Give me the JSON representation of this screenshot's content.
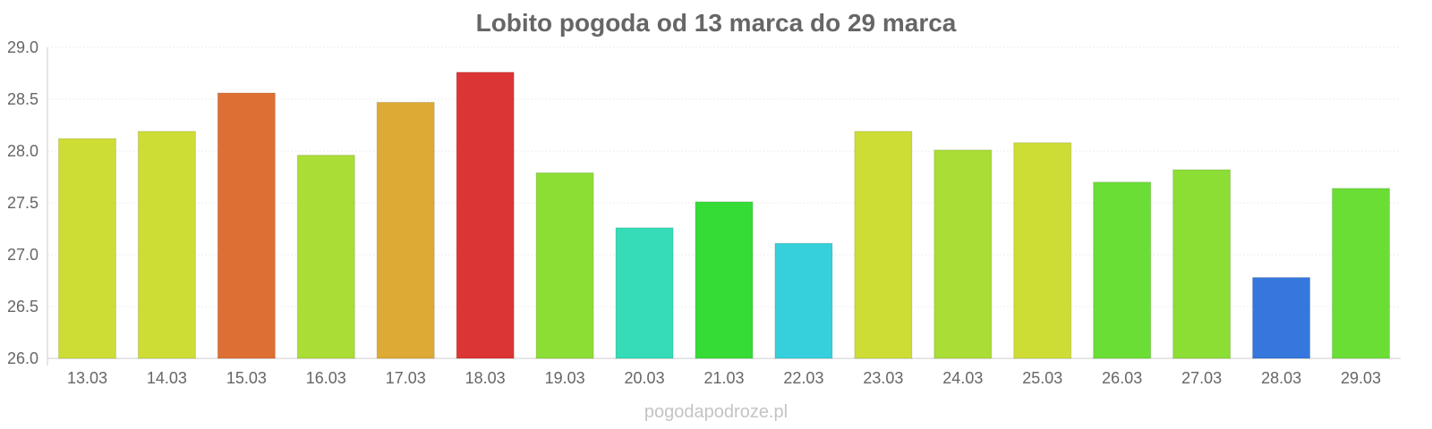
{
  "chart_data": {
    "type": "bar",
    "title": "Lobito pogoda od 13 marca do 29 marca",
    "xlabel": "",
    "ylabel": "",
    "ylim": [
      26.0,
      29.0
    ],
    "yticks": [
      "26.0",
      "26.5",
      "27.0",
      "27.5",
      "28.0",
      "28.5",
      "29.0"
    ],
    "grid": true,
    "legend": "none",
    "categories": [
      "13.03",
      "14.03",
      "15.03",
      "16.03",
      "17.03",
      "18.03",
      "19.03",
      "20.03",
      "21.03",
      "22.03",
      "23.03",
      "24.03",
      "25.03",
      "26.03",
      "27.03",
      "28.03",
      "29.03"
    ],
    "values": [
      28.12,
      28.19,
      28.56,
      27.96,
      28.47,
      28.76,
      27.79,
      27.26,
      27.51,
      27.11,
      28.19,
      28.01,
      28.08,
      27.7,
      27.82,
      26.78,
      27.64
    ],
    "colors": [
      "#cddd35",
      "#cddd35",
      "#dd6f35",
      "#aadd35",
      "#dcaa35",
      "#dc3535",
      "#8cde35",
      "#35dcb7",
      "#35dc35",
      "#35d0dc",
      "#cddd35",
      "#aadd35",
      "#cddd35",
      "#6ade35",
      "#8cde35",
      "#3577dc",
      "#6ade35"
    ]
  },
  "watermark": "pogodapodroze.pl"
}
